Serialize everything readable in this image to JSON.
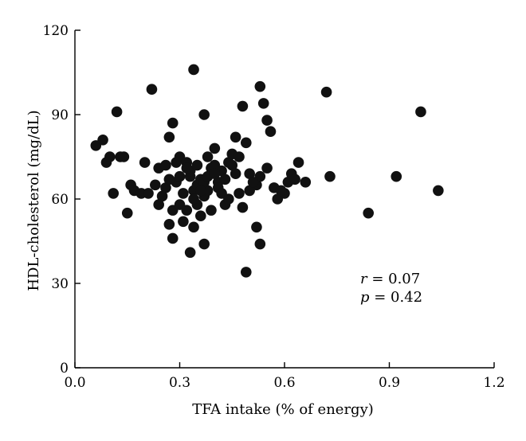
{
  "chart_data": {
    "type": "scatter",
    "title": "",
    "xlabel": "TFA intake (% of energy)",
    "ylabel": "HDL-cholesterol (mg/dL)",
    "xlim": [
      0.0,
      1.2
    ],
    "ylim": [
      0,
      120
    ],
    "xticks": [
      0.0,
      0.3,
      0.6,
      0.9,
      1.2
    ],
    "yticks": [
      0,
      30,
      60,
      90,
      120
    ],
    "xtick_labels": [
      "0.0",
      "0.3",
      "0.6",
      "0.9",
      "1.2"
    ],
    "ytick_labels": [
      "0",
      "30",
      "60",
      "90",
      "120"
    ],
    "grid": false,
    "point_color": "#111111",
    "annotations": [
      {
        "var": "r",
        "text": " = 0.07"
      },
      {
        "var": "p",
        "text": " = 0.42"
      }
    ],
    "points": [
      [
        0.06,
        79
      ],
      [
        0.08,
        81
      ],
      [
        0.09,
        73
      ],
      [
        0.1,
        75
      ],
      [
        0.11,
        62
      ],
      [
        0.12,
        91
      ],
      [
        0.13,
        75
      ],
      [
        0.14,
        75
      ],
      [
        0.15,
        55
      ],
      [
        0.16,
        65
      ],
      [
        0.17,
        63
      ],
      [
        0.19,
        62
      ],
      [
        0.2,
        73
      ],
      [
        0.21,
        62
      ],
      [
        0.22,
        99
      ],
      [
        0.23,
        65
      ],
      [
        0.24,
        71
      ],
      [
        0.25,
        61
      ],
      [
        0.26,
        64
      ],
      [
        0.27,
        82
      ],
      [
        0.28,
        87
      ],
      [
        0.29,
        73
      ],
      [
        0.28,
        56
      ],
      [
        0.3,
        75
      ],
      [
        0.32,
        73
      ],
      [
        0.33,
        68
      ],
      [
        0.34,
        63
      ],
      [
        0.35,
        65
      ],
      [
        0.37,
        61
      ],
      [
        0.36,
        54
      ],
      [
        0.38,
        75
      ],
      [
        0.39,
        71
      ],
      [
        0.4,
        78
      ],
      [
        0.41,
        66
      ],
      [
        0.42,
        70
      ],
      [
        0.43,
        67
      ],
      [
        0.44,
        73
      ],
      [
        0.45,
        76
      ],
      [
        0.46,
        82
      ],
      [
        0.47,
        75
      ],
      [
        0.48,
        93
      ],
      [
        0.49,
        80
      ],
      [
        0.5,
        69
      ],
      [
        0.52,
        65
      ],
      [
        0.53,
        100
      ],
      [
        0.54,
        94
      ],
      [
        0.55,
        88
      ],
      [
        0.56,
        84
      ],
      [
        0.58,
        60
      ],
      [
        0.6,
        62
      ],
      [
        0.62,
        69
      ],
      [
        0.64,
        73
      ],
      [
        0.66,
        66
      ],
      [
        0.34,
        106
      ],
      [
        0.37,
        90
      ],
      [
        0.34,
        50
      ],
      [
        0.37,
        44
      ],
      [
        0.33,
        41
      ],
      [
        0.49,
        34
      ],
      [
        0.52,
        50
      ],
      [
        0.53,
        44
      ],
      [
        0.27,
        51
      ],
      [
        0.28,
        46
      ],
      [
        0.72,
        98
      ],
      [
        0.73,
        68
      ],
      [
        0.84,
        55
      ],
      [
        0.92,
        68
      ],
      [
        0.99,
        91
      ],
      [
        1.04,
        63
      ],
      [
        0.3,
        58
      ],
      [
        0.31,
        62
      ],
      [
        0.32,
        56
      ],
      [
        0.33,
        70
      ],
      [
        0.35,
        58
      ],
      [
        0.36,
        67
      ],
      [
        0.38,
        63
      ],
      [
        0.39,
        56
      ],
      [
        0.4,
        72
      ],
      [
        0.41,
        64
      ],
      [
        0.42,
        62
      ],
      [
        0.43,
        58
      ],
      [
        0.44,
        60
      ],
      [
        0.46,
        69
      ],
      [
        0.47,
        62
      ],
      [
        0.48,
        57
      ],
      [
        0.29,
        66
      ],
      [
        0.31,
        52
      ],
      [
        0.32,
        71
      ],
      [
        0.34,
        60
      ],
      [
        0.35,
        72
      ],
      [
        0.37,
        66
      ],
      [
        0.38,
        68
      ],
      [
        0.24,
        58
      ],
      [
        0.26,
        72
      ],
      [
        0.27,
        67
      ],
      [
        0.53,
        68
      ],
      [
        0.55,
        71
      ],
      [
        0.57,
        64
      ],
      [
        0.59,
        63
      ],
      [
        0.61,
        66
      ],
      [
        0.63,
        67
      ],
      [
        0.5,
        63
      ],
      [
        0.51,
        66
      ],
      [
        0.45,
        72
      ],
      [
        0.4,
        69
      ],
      [
        0.36,
        63
      ],
      [
        0.3,
        68
      ]
    ]
  }
}
